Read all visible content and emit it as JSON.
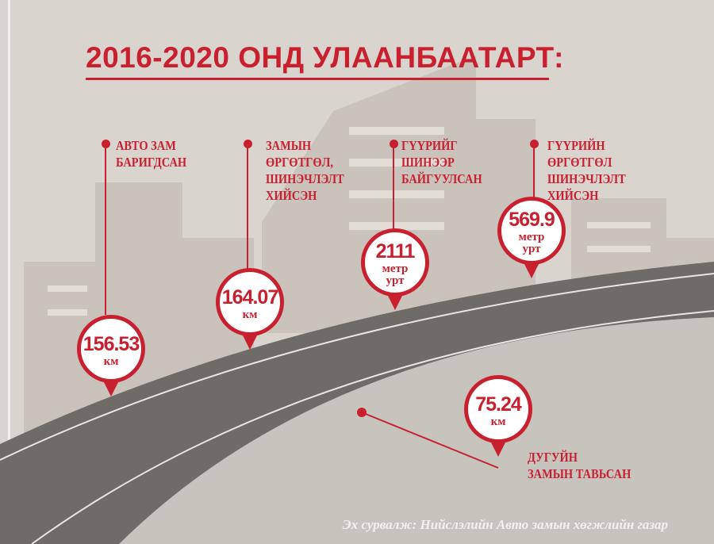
{
  "title": "2016-2020 ОНД УЛААНБААТАРТ:",
  "colors": {
    "accent": "#c8202f",
    "background": "#d9d4ce",
    "road": "#6f6b67"
  },
  "items": [
    {
      "label": "АВТО ЗАМ\nБАРИГДСАН",
      "value": "156.53",
      "unit": "км"
    },
    {
      "label": "ЗАМЫН\nӨРГӨТГӨЛ,\nШИНЭЧЛЭЛТ\nХИЙСЭН",
      "value": "164.07",
      "unit": "км"
    },
    {
      "label": "ГҮҮРИЙГ\nШИНЭЭР\nБАЙГУУЛСАН",
      "value": "2111",
      "unit": "метр\nурт"
    },
    {
      "label": "ГҮҮРИЙН\nӨРГӨТГӨЛ\nШИНЭЧЛЭЛТ\nХИЙСЭН",
      "value": "569.9",
      "unit": "метр\nурт"
    },
    {
      "label": "ДУГУЙН\nЗАМЫН ТАВЬСАН",
      "value": "75.24",
      "unit": "км"
    }
  ],
  "source": "Эх сурвалж: Нийслэлийн Авто замын хөгжлийн газар"
}
